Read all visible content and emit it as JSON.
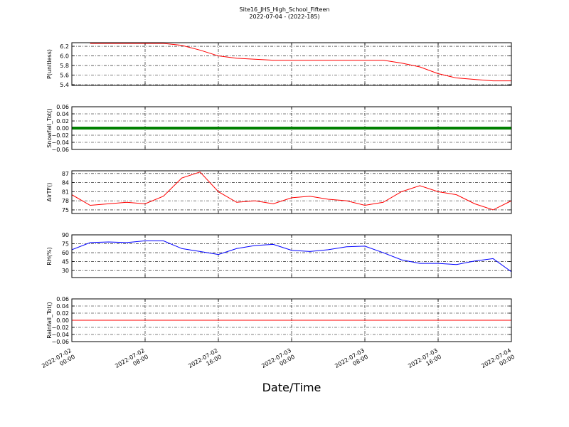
{
  "figure": {
    "title": "Site16_JHS_High_School_Fifteen",
    "subtitle": "2022-07-04 - (2022-185)",
    "x_label": "Date/Time"
  },
  "chart_data": [
    {
      "type": "line",
      "ylabel": "P(unitless)",
      "color": "#ff0000",
      "line_width": 1,
      "grid": true,
      "x": [
        "2022-07-02 00:00",
        "2022-07-02 02:00",
        "2022-07-02 04:00",
        "2022-07-02 06:00",
        "2022-07-02 08:00",
        "2022-07-02 10:00",
        "2022-07-02 12:00",
        "2022-07-02 14:00",
        "2022-07-02 16:00",
        "2022-07-02 18:00",
        "2022-07-02 20:00",
        "2022-07-02 22:00",
        "2022-07-03 00:00",
        "2022-07-03 02:00",
        "2022-07-03 04:00",
        "2022-07-03 06:00",
        "2022-07-03 08:00",
        "2022-07-03 10:00",
        "2022-07-03 12:00",
        "2022-07-03 14:00",
        "2022-07-03 16:00",
        "2022-07-03 18:00",
        "2022-07-03 20:00",
        "2022-07-03 22:00",
        "2022-07-04 00:00"
      ],
      "values": [
        null,
        6.26,
        6.26,
        6.26,
        6.26,
        6.26,
        6.22,
        6.12,
        6.0,
        5.95,
        5.93,
        5.91,
        5.91,
        5.91,
        5.91,
        5.91,
        5.91,
        5.91,
        5.85,
        5.77,
        5.63,
        5.54,
        5.51,
        5.48,
        5.48
      ],
      "xlim": [
        "2022-07-02 00:00",
        "2022-07-04 00:00"
      ],
      "xticks": [
        "2022-07-02 00:00",
        "2022-07-02 08:00",
        "2022-07-02 16:00",
        "2022-07-03 00:00",
        "2022-07-03 08:00",
        "2022-07-03 16:00",
        "2022-07-04 00:00"
      ],
      "ylim": [
        5.385,
        6.275
      ],
      "yticks": [
        5.4,
        5.6,
        5.8,
        {
          "value": 6,
          "label": "6.0"
        },
        6.2
      ]
    },
    {
      "type": "line",
      "ylabel": "Snowfall_Tot()",
      "color": "#008000",
      "line_width": 4,
      "grid": true,
      "x": [
        "2022-07-02 00:00",
        "2022-07-02 02:00",
        "2022-07-02 04:00",
        "2022-07-02 06:00",
        "2022-07-02 08:00",
        "2022-07-02 10:00",
        "2022-07-02 12:00",
        "2022-07-02 14:00",
        "2022-07-02 16:00",
        "2022-07-02 18:00",
        "2022-07-02 20:00",
        "2022-07-02 22:00",
        "2022-07-03 00:00",
        "2022-07-03 02:00",
        "2022-07-03 04:00",
        "2022-07-03 06:00",
        "2022-07-03 08:00",
        "2022-07-03 10:00",
        "2022-07-03 12:00",
        "2022-07-03 14:00",
        "2022-07-03 16:00",
        "2022-07-03 18:00",
        "2022-07-03 20:00",
        "2022-07-03 22:00",
        "2022-07-04 00:00"
      ],
      "values": [
        0,
        0,
        0,
        0,
        0,
        0,
        0,
        0,
        0,
        0,
        0,
        0,
        0,
        0,
        0,
        0,
        0,
        0,
        0,
        0,
        0,
        0,
        0,
        0,
        0
      ],
      "xlim": [
        "2022-07-02 00:00",
        "2022-07-04 00:00"
      ],
      "xticks": [
        "2022-07-02 00:00",
        "2022-07-02 08:00",
        "2022-07-02 16:00",
        "2022-07-03 00:00",
        "2022-07-03 08:00",
        "2022-07-03 16:00",
        "2022-07-04 00:00"
      ],
      "ylim": [
        -0.06,
        0.06
      ],
      "yticks": [
        {
          "value": -0.06,
          "label": "−0.06"
        },
        {
          "value": -0.04,
          "label": "−0.04"
        },
        {
          "value": -0.02,
          "label": "−0.02"
        },
        {
          "value": 0,
          "label": "0.00"
        },
        0.02,
        0.04,
        0.06
      ]
    },
    {
      "type": "line",
      "ylabel": "AirTF()",
      "color": "#ff0000",
      "line_width": 1,
      "grid": true,
      "x": [
        "2022-07-02 00:00",
        "2022-07-02 02:00",
        "2022-07-02 04:00",
        "2022-07-02 06:00",
        "2022-07-02 08:00",
        "2022-07-02 10:00",
        "2022-07-02 12:00",
        "2022-07-02 14:00",
        "2022-07-02 16:00",
        "2022-07-02 18:00",
        "2022-07-02 20:00",
        "2022-07-02 22:00",
        "2022-07-03 00:00",
        "2022-07-03 02:00",
        "2022-07-03 04:00",
        "2022-07-03 06:00",
        "2022-07-03 08:00",
        "2022-07-03 10:00",
        "2022-07-03 12:00",
        "2022-07-03 14:00",
        "2022-07-03 16:00",
        "2022-07-03 18:00",
        "2022-07-03 20:00",
        "2022-07-03 22:00",
        "2022-07-04 00:00"
      ],
      "values": [
        80,
        76.5,
        77,
        77.5,
        77,
        79.5,
        85.5,
        87.5,
        81,
        77.5,
        78,
        77,
        79,
        79.5,
        78.5,
        78,
        76.5,
        77.5,
        81,
        83,
        81,
        80,
        77,
        75,
        78
      ],
      "xlim": [
        "2022-07-02 00:00",
        "2022-07-04 00:00"
      ],
      "xticks": [
        "2022-07-02 00:00",
        "2022-07-02 08:00",
        "2022-07-02 16:00",
        "2022-07-03 00:00",
        "2022-07-03 08:00",
        "2022-07-03 16:00",
        "2022-07-04 00:00"
      ],
      "ylim": [
        73.8,
        87.9
      ],
      "yticks": [
        75,
        78,
        81,
        84,
        87
      ]
    },
    {
      "type": "line",
      "ylabel": "RH(%)",
      "color": "#0000ff",
      "line_width": 1,
      "grid": true,
      "x": [
        "2022-07-02 00:00",
        "2022-07-02 02:00",
        "2022-07-02 04:00",
        "2022-07-02 06:00",
        "2022-07-02 08:00",
        "2022-07-02 10:00",
        "2022-07-02 12:00",
        "2022-07-02 14:00",
        "2022-07-02 16:00",
        "2022-07-02 18:00",
        "2022-07-02 20:00",
        "2022-07-02 22:00",
        "2022-07-03 00:00",
        "2022-07-03 02:00",
        "2022-07-03 04:00",
        "2022-07-03 06:00",
        "2022-07-03 08:00",
        "2022-07-03 10:00",
        "2022-07-03 12:00",
        "2022-07-03 14:00",
        "2022-07-03 16:00",
        "2022-07-03 18:00",
        "2022-07-03 20:00",
        "2022-07-03 22:00",
        "2022-07-04 00:00"
      ],
      "values": [
        65,
        77,
        78,
        77,
        80,
        80,
        67,
        62,
        57,
        67,
        72,
        74,
        64,
        62,
        65,
        70,
        71,
        60,
        48,
        42,
        42,
        40,
        46,
        50,
        28
      ],
      "xlim": [
        "2022-07-02 00:00",
        "2022-07-04 00:00"
      ],
      "xticks": [
        "2022-07-02 00:00",
        "2022-07-02 08:00",
        "2022-07-02 16:00",
        "2022-07-03 00:00",
        "2022-07-03 08:00",
        "2022-07-03 16:00",
        "2022-07-04 00:00"
      ],
      "ylim": [
        18.2,
        90
      ],
      "yticks": [
        30,
        45,
        60,
        75,
        90
      ]
    },
    {
      "type": "line",
      "ylabel": "Rainfall_Tot()",
      "color": "#ff0000",
      "line_width": 1,
      "grid": true,
      "x": [
        "2022-07-02 00:00",
        "2022-07-02 02:00",
        "2022-07-02 04:00",
        "2022-07-02 06:00",
        "2022-07-02 08:00",
        "2022-07-02 10:00",
        "2022-07-02 12:00",
        "2022-07-02 14:00",
        "2022-07-02 16:00",
        "2022-07-02 18:00",
        "2022-07-02 20:00",
        "2022-07-02 22:00",
        "2022-07-03 00:00",
        "2022-07-03 02:00",
        "2022-07-03 04:00",
        "2022-07-03 06:00",
        "2022-07-03 08:00",
        "2022-07-03 10:00",
        "2022-07-03 12:00",
        "2022-07-03 14:00",
        "2022-07-03 16:00",
        "2022-07-03 18:00",
        "2022-07-03 20:00",
        "2022-07-03 22:00",
        "2022-07-04 00:00"
      ],
      "values": [
        0,
        0,
        0,
        0,
        0,
        0,
        0,
        0,
        0,
        0,
        0,
        0,
        0,
        0,
        0,
        0,
        0,
        0,
        0,
        0,
        0,
        0,
        0,
        0,
        0
      ],
      "xlim": [
        "2022-07-02 00:00",
        "2022-07-04 00:00"
      ],
      "xticks": [
        "2022-07-02 00:00",
        "2022-07-02 08:00",
        "2022-07-02 16:00",
        "2022-07-03 00:00",
        "2022-07-03 08:00",
        "2022-07-03 16:00",
        "2022-07-04 00:00"
      ],
      "ylim": [
        -0.06,
        0.06
      ],
      "yticks": [
        {
          "value": -0.06,
          "label": "−0.06"
        },
        {
          "value": -0.04,
          "label": "−0.04"
        },
        {
          "value": -0.02,
          "label": "−0.02"
        },
        {
          "value": 0,
          "label": "0.00"
        },
        0.02,
        0.04,
        0.06
      ]
    }
  ]
}
